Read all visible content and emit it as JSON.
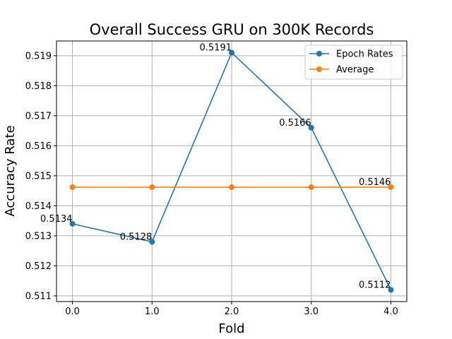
{
  "chart_data": {
    "type": "line",
    "title": "Overall Success GRU on 300K Records",
    "xlabel": "Fold",
    "ylabel": "Accuracy Rate",
    "x": [
      0,
      1,
      2,
      3,
      4
    ],
    "x_tick_labels": [
      "0.0",
      "1.0",
      "2.0",
      "3.0",
      "4.0"
    ],
    "y_tick_values": [
      0.511,
      0.512,
      0.513,
      0.514,
      0.515,
      0.516,
      0.517,
      0.518,
      0.519
    ],
    "y_tick_labels": [
      "0.511",
      "0.512",
      "0.513",
      "0.514",
      "0.515",
      "0.516",
      "0.517",
      "0.518",
      "0.519"
    ],
    "xlim": [
      -0.2,
      4.2
    ],
    "ylim": [
      0.51081,
      0.51949
    ],
    "grid": true,
    "legend_position": "upper right",
    "series": [
      {
        "name": "Epoch Rates",
        "color": "#1f77b4",
        "values": [
          0.5134,
          0.5128,
          0.5191,
          0.5166,
          0.5112
        ],
        "labels": [
          "0.5134",
          "0.5128",
          "0.5191",
          "0.5166",
          "0.5112"
        ]
      },
      {
        "name": "Average",
        "color": "#ff7f0e",
        "values": [
          0.51462,
          0.51462,
          0.51462,
          0.51462,
          0.51462
        ],
        "labels": [
          "",
          "",
          "",
          "",
          "0.5146"
        ]
      }
    ]
  }
}
